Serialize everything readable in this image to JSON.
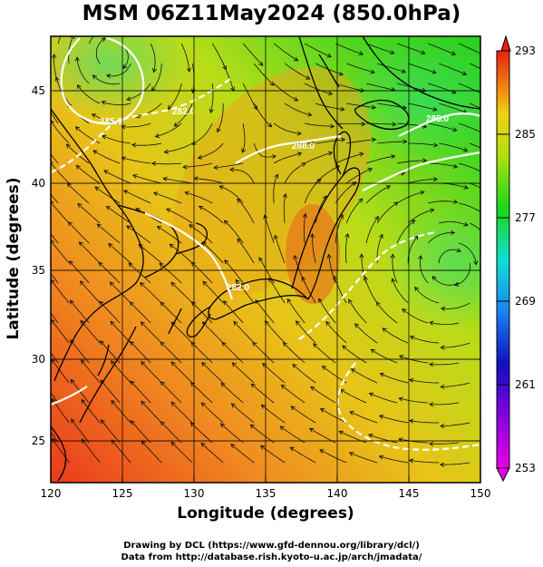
{
  "title": "MSM 06Z11May2024 (850.0hPa)",
  "xaxis": {
    "label": "Longitude (degrees)",
    "ticks": [
      "120",
      "125",
      "130",
      "135",
      "140",
      "145",
      "150"
    ]
  },
  "yaxis": {
    "label": "Latitude  (degrees)",
    "ticks": [
      "25",
      "30",
      "35",
      "40",
      "45"
    ]
  },
  "colorbar": {
    "ticks": [
      "293",
      "285",
      "277",
      "269",
      "261",
      "253"
    ]
  },
  "contour_labels": [
    "285.0",
    "285.0",
    "282.0",
    "288.0",
    "282.0"
  ],
  "footer": {
    "line1": "Drawing by DCL (https://www.gfd-dennou.org/library/dcl/)",
    "line2": "Data from http://database.rish.kyoto-u.ac.jp/arch/jmadata/"
  },
  "colors": {
    "warm": "#e8331a",
    "mid": "#e6d210",
    "cool": "#1fd119",
    "cold": "#1515c4",
    "frame": "#000000"
  },
  "chart_data": {
    "type": "heatmap",
    "title": "MSM 06Z11May2024 (850.0hPa)",
    "xlabel": "Longitude (degrees)",
    "ylabel": "Latitude  (degrees)",
    "xlim": [
      120,
      150
    ],
    "ylim": [
      22.5,
      47.5
    ],
    "colorbar_range": [
      253,
      293
    ],
    "overlays": [
      "streamlines",
      "isotherm contours",
      "coastlines"
    ]
  }
}
